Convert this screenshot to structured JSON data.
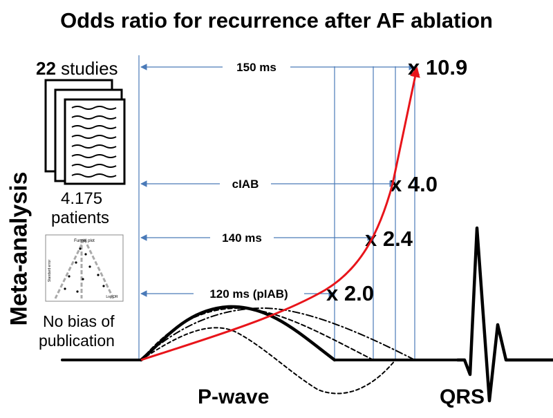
{
  "title": "Odds ratio for recurrence after AF ablation",
  "side_label": "Meta-analysis",
  "studies": {
    "count": "22",
    "label": "studies"
  },
  "patients": {
    "count": "4.175",
    "label": "patients"
  },
  "funnel_plot": {
    "title": "Funnel plot",
    "ylabel": "Standard error",
    "xlabel": "Log OR"
  },
  "bias": {
    "line1": "No bias of",
    "line2": "publication"
  },
  "thresholds": [
    {
      "label": "150 ms",
      "odds": "x 10.9"
    },
    {
      "label": "cIAB",
      "odds": "x 4.0"
    },
    {
      "label": "140 ms",
      "odds": "x 2.4"
    },
    {
      "label": "120 ms (pIAB)",
      "odds": "x 2.0"
    }
  ],
  "waves": {
    "p_wave": "P-wave",
    "qrs": "QRS"
  },
  "colors": {
    "curve": "#e8141a",
    "arrow": "#4a7ab8",
    "text": "#000000"
  }
}
